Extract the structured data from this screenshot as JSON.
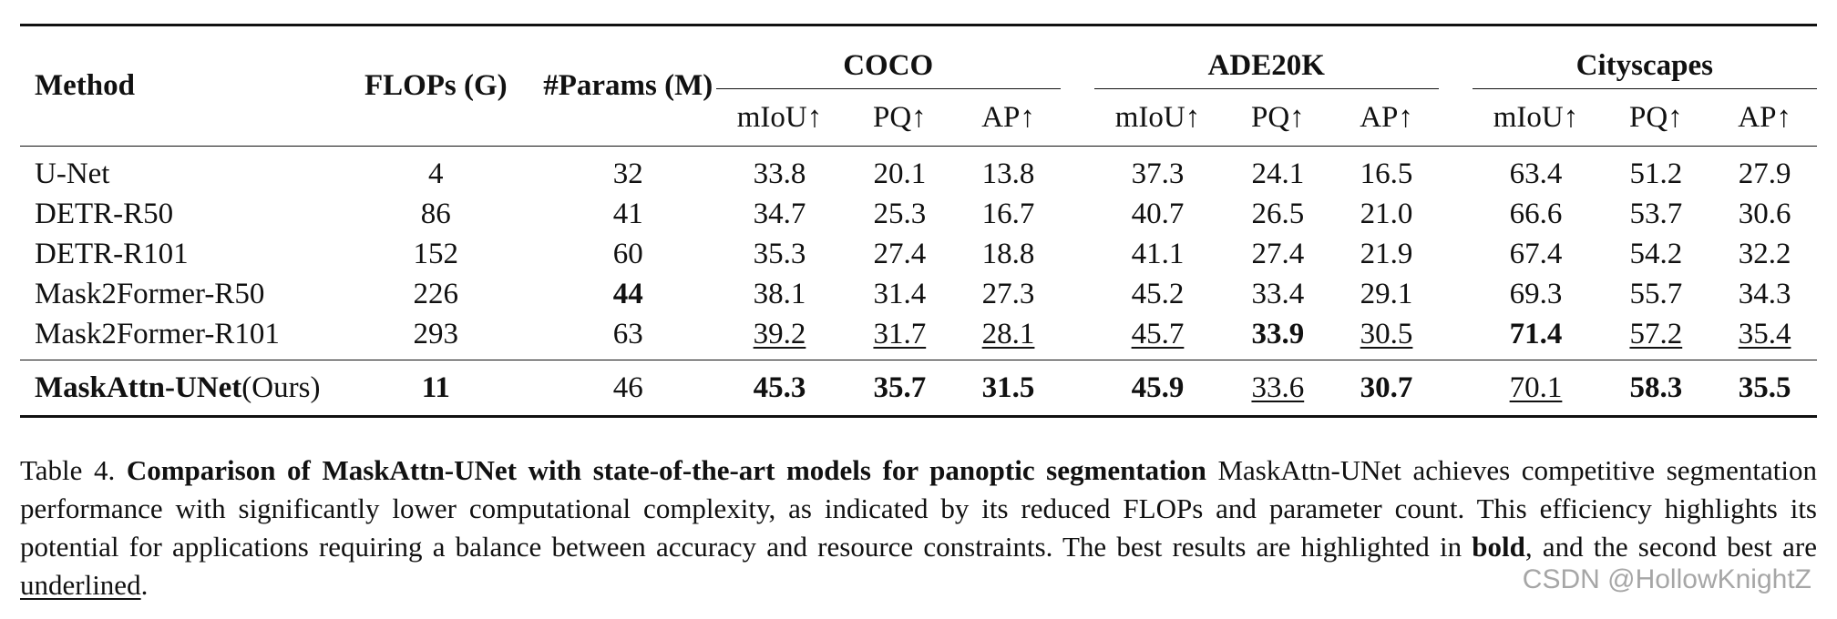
{
  "table": {
    "headers": {
      "method": "Method",
      "flops": "FLOPs (G)",
      "params": "#Params (M)",
      "groups": [
        "COCO",
        "ADE20K",
        "Cityscapes"
      ],
      "metrics": [
        "mIoU↑",
        "PQ↑",
        "AP↑"
      ]
    },
    "rows": [
      {
        "method": "U-Net",
        "method_suffix": "",
        "flops": "4",
        "params": "32",
        "coco": [
          "33.8",
          "20.1",
          "13.8"
        ],
        "ade": [
          "37.3",
          "24.1",
          "16.5"
        ],
        "city": [
          "63.4",
          "51.2",
          "27.9"
        ]
      },
      {
        "method": "DETR-R50",
        "method_suffix": "",
        "flops": "86",
        "params": "41",
        "coco": [
          "34.7",
          "25.3",
          "16.7"
        ],
        "ade": [
          "40.7",
          "26.5",
          "21.0"
        ],
        "city": [
          "66.6",
          "53.7",
          "30.6"
        ]
      },
      {
        "method": "DETR-R101",
        "method_suffix": "",
        "flops": "152",
        "params": "60",
        "coco": [
          "35.3",
          "27.4",
          "18.8"
        ],
        "ade": [
          "41.1",
          "27.4",
          "21.9"
        ],
        "city": [
          "67.4",
          "54.2",
          "32.2"
        ]
      },
      {
        "method": "Mask2Former-R50",
        "method_suffix": "",
        "flops": "226",
        "params": "44",
        "coco": [
          "38.1",
          "31.4",
          "27.3"
        ],
        "ade": [
          "45.2",
          "33.4",
          "29.1"
        ],
        "city": [
          "69.3",
          "55.7",
          "34.3"
        ]
      },
      {
        "method": "Mask2Former-R101",
        "method_suffix": "",
        "flops": "293",
        "params": "63",
        "coco": [
          "39.2",
          "31.7",
          "28.1"
        ],
        "ade": [
          "45.7",
          "33.9",
          "30.5"
        ],
        "city": [
          "71.4",
          "57.2",
          "35.4"
        ]
      },
      {
        "method": "MaskAttn-UNet",
        "method_suffix": "(Ours)",
        "flops": "11",
        "params": "46",
        "coco": [
          "45.3",
          "35.7",
          "31.5"
        ],
        "ade": [
          "45.9",
          "33.6",
          "30.7"
        ],
        "city": [
          "70.1",
          "58.3",
          "35.5"
        ]
      }
    ]
  },
  "caption": {
    "label": "Table 4.",
    "title": "Comparison of MaskAttn-UNet with state-of-the-art models for panoptic segmentation",
    "body": "MaskAttn-UNet achieves competitive segmentation performance with significantly lower computational complexity, as indicated by its reduced FLOPs and parameter count. This efficiency highlights its potential for applications requiring a balance between accuracy and resource constraints. The best results are highlighted in",
    "bold_word": "bold",
    "middle": ", and the second best are",
    "underline_word": "underlined",
    "end": "."
  },
  "watermark": "CSDN @HollowKnightZ"
}
